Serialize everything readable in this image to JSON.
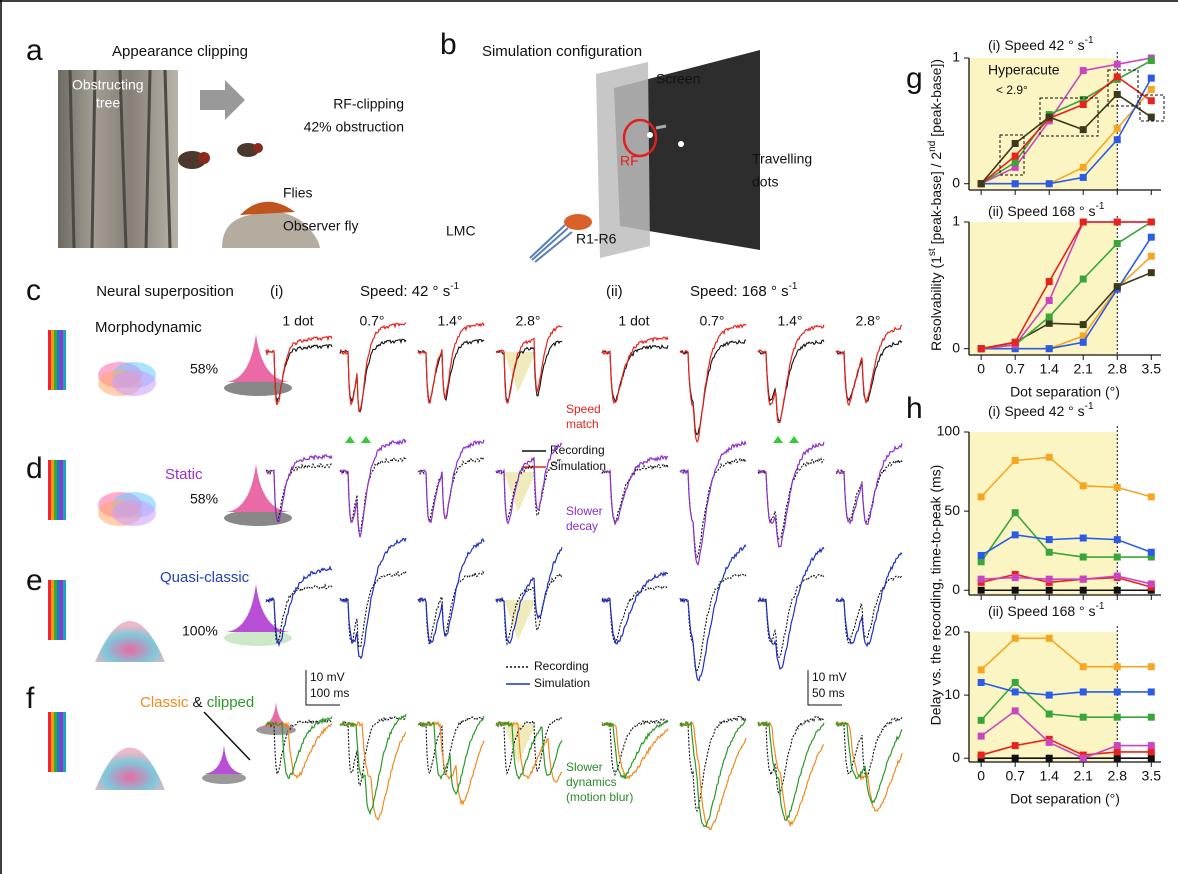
{
  "panels": {
    "a": {
      "label": "a",
      "title": "Appearance clipping",
      "tree": [
        "Obstructing",
        "tree"
      ],
      "flies": "Flies",
      "observer": "Observer fly"
    },
    "b": {
      "label": "b",
      "title": "Simulation configuration",
      "screen": "Screen",
      "clipping": [
        "RF-clipping",
        "42% obstruction"
      ],
      "rf": "RF",
      "dots": [
        "Travelling",
        "dots"
      ],
      "lmc": "LMC",
      "receptors": "R1-R6"
    },
    "c": {
      "label": "c",
      "title": "Neural superposition",
      "model": "Morphodynamic",
      "percent": "58%",
      "speeds": [
        {
          "index": "(i)",
          "text": "Speed: 42 ° s",
          "sup": "-1"
        },
        {
          "index": "(ii)",
          "text": "Speed: 168 ° s",
          "sup": "-1"
        }
      ],
      "columns": [
        "1 dot",
        "0.7°",
        "1.4°",
        "2.8°"
      ],
      "note": [
        "Speed",
        "match"
      ],
      "legend": [
        "Recording",
        "Simulation"
      ]
    },
    "d": {
      "label": "d",
      "model": "Static",
      "percent": "58%",
      "note": [
        "Slower",
        "decay"
      ]
    },
    "e": {
      "label": "e",
      "model": "Quasi-classic",
      "percent": "100%",
      "legend": [
        "Recording",
        "Simulation"
      ],
      "scale_bars": [
        [
          "10 mV",
          "100 ms"
        ],
        [
          "10 mV",
          "50 ms"
        ]
      ]
    },
    "f": {
      "label": "f",
      "model": [
        "Classic",
        "&",
        "clipped"
      ],
      "note": [
        "Slower",
        "dynamics",
        "(motion blur)"
      ]
    },
    "g": {
      "label": "g",
      "ylabel": [
        "Resolvability (1",
        "st",
        " [peak-base] / 2",
        "nd",
        " [peak-base])"
      ]
    },
    "h": {
      "label": "h",
      "ylabel": "Delay vs. the recording, time-to-peak (ms)"
    }
  },
  "chart_data": [
    {
      "type": "line",
      "title": "(i) Speed 42 ° s",
      "title_sup": "-1",
      "x": [
        0,
        0.7,
        1.4,
        2.1,
        2.8,
        3.5
      ],
      "xlim": [
        -0.25,
        3.7
      ],
      "ylim": [
        -0.05,
        1
      ],
      "xticks": [
        0,
        0.7,
        1.4,
        2.1,
        2.8,
        3.5
      ],
      "yticks": [
        0,
        1
      ],
      "show_xtick_labels": false,
      "grid": false,
      "threshold": 2.8,
      "shade": "#fbf5c4",
      "annotations": [
        "Hyperacute",
        "< 2.9°"
      ],
      "series": [
        {
          "color": "#f5a623",
          "values": [
            0,
            0,
            0,
            0.13,
            0.44,
            0.75
          ]
        },
        {
          "color": "#2b5ce6",
          "values": [
            0,
            0,
            0,
            0.05,
            0.35,
            0.84
          ]
        },
        {
          "color": "#c847c0",
          "values": [
            0,
            0.13,
            0.5,
            0.9,
            0.95,
            1.0
          ]
        },
        {
          "color": "#3aa63a",
          "values": [
            0,
            0.17,
            0.55,
            0.67,
            0.83,
            0.98
          ]
        },
        {
          "color": "#e8221c",
          "values": [
            0,
            0.22,
            0.52,
            0.63,
            0.85,
            0.66
          ]
        },
        {
          "color": "#3d3a1c",
          "values": [
            0,
            0.32,
            0.53,
            0.43,
            0.71,
            0.53
          ]
        }
      ]
    },
    {
      "type": "line",
      "title": "(ii) Speed 168 ° s",
      "title_sup": "-1",
      "x": [
        0,
        0.7,
        1.4,
        2.1,
        2.8,
        3.5
      ],
      "xlim": [
        -0.25,
        3.7
      ],
      "ylim": [
        -0.05,
        1
      ],
      "xticks": [
        0,
        0.7,
        1.4,
        2.1,
        2.8,
        3.5
      ],
      "yticks": [
        0,
        1
      ],
      "show_xtick_labels": true,
      "grid": false,
      "threshold": 2.8,
      "shade": "#fbf5c4",
      "xlabel": "Dot separation (°)",
      "series": [
        {
          "color": "#f5a623",
          "values": [
            0,
            0,
            0,
            0.1,
            0.48,
            0.73
          ]
        },
        {
          "color": "#2b5ce6",
          "values": [
            0,
            0,
            0,
            0.05,
            0.47,
            0.88
          ]
        },
        {
          "color": "#3d3a1c",
          "values": [
            0,
            0.05,
            0.2,
            0.19,
            0.49,
            0.6
          ]
        },
        {
          "color": "#3aa63a",
          "values": [
            0,
            0.03,
            0.25,
            0.55,
            0.83,
            1.0
          ]
        },
        {
          "color": "#c847c0",
          "values": [
            0,
            0.03,
            0.38,
            1.0,
            1.0,
            1.0
          ]
        },
        {
          "color": "#e8221c",
          "values": [
            0,
            0.05,
            0.53,
            1.0,
            1.0,
            1.0
          ]
        }
      ]
    },
    {
      "type": "line",
      "title": "(i) Speed 42 ° s",
      "title_sup": "-1",
      "x": [
        0,
        0.7,
        1.4,
        2.1,
        2.8,
        3.5
      ],
      "xlim": [
        -0.25,
        3.7
      ],
      "ylim": [
        -3,
        100
      ],
      "xticks": [
        0,
        0.7,
        1.4,
        2.1,
        2.8,
        3.5
      ],
      "yticks": [
        0,
        50,
        100
      ],
      "show_xtick_labels": false,
      "grid": false,
      "threshold": 2.8,
      "shade": "#fbf5c4",
      "series": [
        {
          "color": "#111111",
          "values": [
            0,
            0,
            0,
            0,
            0,
            0
          ]
        },
        {
          "color": "#e8221c",
          "values": [
            5,
            10,
            5,
            7,
            8,
            2
          ]
        },
        {
          "color": "#c847c0",
          "values": [
            7,
            8,
            7,
            7,
            9,
            4
          ]
        },
        {
          "color": "#3aa63a",
          "values": [
            18,
            49,
            24,
            21,
            21,
            21
          ]
        },
        {
          "color": "#2b5ce6",
          "values": [
            22,
            35,
            32,
            33,
            32,
            24
          ]
        },
        {
          "color": "#f5a623",
          "values": [
            59,
            82,
            84,
            66,
            65,
            59
          ]
        }
      ]
    },
    {
      "type": "line",
      "title": "(ii) Speed 168 ° s",
      "title_sup": "-1",
      "x": [
        0,
        0.7,
        1.4,
        2.1,
        2.8,
        3.5
      ],
      "xlim": [
        -0.25,
        3.7
      ],
      "ylim": [
        -0.6,
        20
      ],
      "xticks": [
        0,
        0.7,
        1.4,
        2.1,
        2.8,
        3.5
      ],
      "yticks": [
        0,
        10,
        20
      ],
      "show_xtick_labels": true,
      "grid": false,
      "threshold": 2.8,
      "shade": "#fbf5c4",
      "xlabel": "Dot separation (°)",
      "series": [
        {
          "color": "#111111",
          "values": [
            0,
            0,
            0,
            0,
            0,
            0
          ]
        },
        {
          "color": "#e8221c",
          "values": [
            0.5,
            2,
            3,
            0.5,
            1,
            1
          ]
        },
        {
          "color": "#c847c0",
          "values": [
            3.5,
            7.5,
            2.5,
            0,
            2,
            2
          ]
        },
        {
          "color": "#3aa63a",
          "values": [
            6,
            12,
            7,
            6.5,
            6.5,
            6.5
          ]
        },
        {
          "color": "#2b5ce6",
          "values": [
            12,
            10.5,
            10,
            10.5,
            10.5,
            10.5
          ]
        },
        {
          "color": "#f5a623",
          "values": [
            14,
            19,
            19,
            14.5,
            14.5,
            14.5
          ]
        }
      ]
    }
  ]
}
